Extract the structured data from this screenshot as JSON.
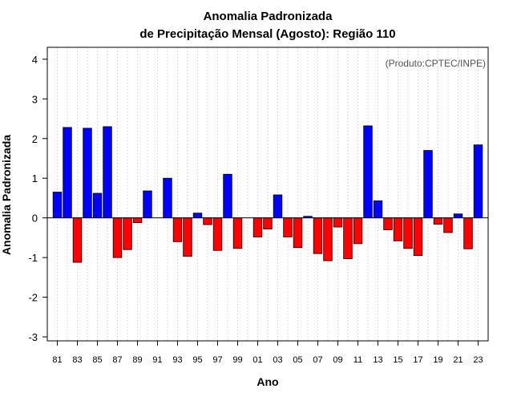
{
  "chart_data": {
    "type": "bar",
    "title_line1": "Anomalia Padronizada",
    "title_line2": "de Precipitação Mensal (Agosto): Região 110",
    "xlabel": "Ano",
    "ylabel": "Anomalia Padronizada",
    "annotation": "(Produto:CPTEC/INPE)",
    "ylim": [
      -3.1,
      4.3
    ],
    "yticks": [
      -3,
      -2,
      -1,
      0,
      1,
      2,
      3,
      4
    ],
    "xtick_labels": [
      "81",
      "83",
      "85",
      "87",
      "89",
      "91",
      "93",
      "95",
      "97",
      "99",
      "01",
      "03",
      "05",
      "07",
      "09",
      "11",
      "13",
      "15",
      "17",
      "19",
      "21",
      "23"
    ],
    "categories": [
      "1981",
      "1982",
      "1983",
      "1984",
      "1985",
      "1986",
      "1987",
      "1988",
      "1989",
      "1990",
      "1991",
      "1992",
      "1993",
      "1994",
      "1995",
      "1996",
      "1997",
      "1998",
      "1999",
      "2000",
      "2001",
      "2002",
      "2003",
      "2004",
      "2005",
      "2006",
      "2007",
      "2008",
      "2009",
      "2010",
      "2011",
      "2012",
      "2013",
      "2014",
      "2015",
      "2016",
      "2017",
      "2018",
      "2019",
      "2020",
      "2021",
      "2022",
      "2023"
    ],
    "values": [
      0.65,
      2.28,
      -1.12,
      2.26,
      0.62,
      2.3,
      -1.0,
      -0.8,
      -0.12,
      0.68,
      0.0,
      1.0,
      -0.6,
      -0.97,
      0.12,
      -0.17,
      -0.82,
      1.1,
      -0.77,
      0.0,
      -0.48,
      -0.28,
      0.58,
      -0.48,
      -0.75,
      0.04,
      -0.9,
      -1.08,
      -0.23,
      -1.03,
      -0.65,
      2.32,
      0.43,
      -0.3,
      -0.58,
      -0.77,
      -0.95,
      1.7,
      -0.16,
      -0.37,
      0.1,
      -0.78,
      1.84
    ],
    "colors": {
      "positive": "#0000ff",
      "negative": "#ff0000",
      "grid": "#c8c8c8",
      "axis": "#000000",
      "note": "#555555"
    },
    "grid": true
  }
}
